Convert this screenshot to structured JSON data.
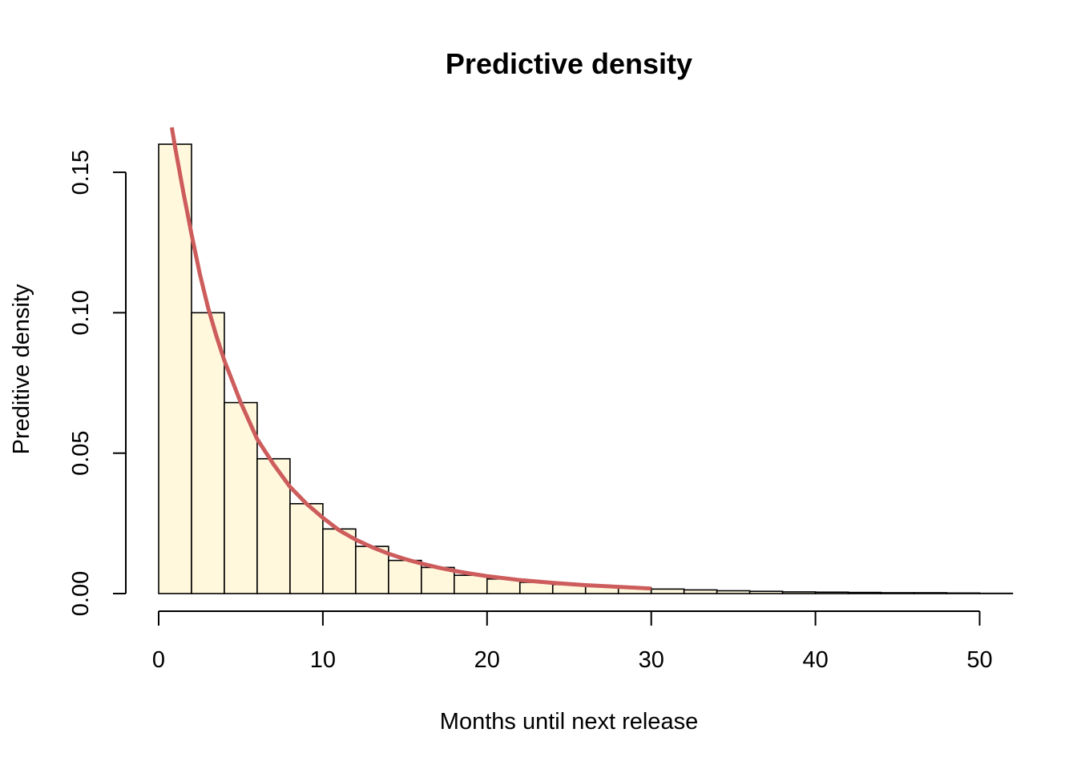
{
  "chart_data": {
    "type": "bar",
    "title": "Predictive density",
    "xlabel": "Months until next release",
    "ylabel": "Preditive density",
    "xlim": [
      0,
      52
    ],
    "ylim": [
      0,
      0.15
    ],
    "x_ticks": [
      0,
      10,
      20,
      30,
      40,
      50
    ],
    "x_tick_labels": [
      "0",
      "10",
      "20",
      "30",
      "40",
      "50"
    ],
    "y_ticks": [
      0,
      0.05,
      0.1,
      0.15
    ],
    "y_tick_labels": [
      "0.00",
      "0.05",
      "0.10",
      "0.15"
    ],
    "grid": false,
    "histogram": {
      "bin_width": 2,
      "bin_starts": [
        0,
        2,
        4,
        6,
        8,
        10,
        12,
        14,
        16,
        18,
        20,
        22,
        24,
        26,
        28,
        30,
        32,
        34,
        36,
        38,
        40,
        42,
        44,
        46,
        48,
        50
      ],
      "values": [
        0.16,
        0.1,
        0.068,
        0.048,
        0.032,
        0.023,
        0.0168,
        0.0118,
        0.0093,
        0.0065,
        0.0052,
        0.004,
        0.0032,
        0.0025,
        0.002,
        0.0016,
        0.0013,
        0.001,
        0.0008,
        0.0006,
        0.0005,
        0.0004,
        0.0003,
        0.0003,
        0.0002,
        0.0001
      ],
      "fill_color": "#FFF8DC",
      "stroke_color": "#000000"
    },
    "curve": {
      "x": [
        0.8,
        1,
        1.5,
        2,
        2.5,
        3,
        3.5,
        4,
        5,
        6,
        7,
        8,
        9,
        10,
        11,
        12,
        13,
        14,
        15,
        16,
        17,
        18,
        19,
        20,
        22,
        24,
        26,
        28,
        30
      ],
      "y": [
        0.166,
        0.159,
        0.143,
        0.128,
        0.114,
        0.102,
        0.092,
        0.083,
        0.068,
        0.055,
        0.046,
        0.038,
        0.032,
        0.027,
        0.0225,
        0.0192,
        0.0165,
        0.0142,
        0.0123,
        0.0107,
        0.0093,
        0.0081,
        0.0071,
        0.0062,
        0.0048,
        0.0038,
        0.003,
        0.0024,
        0.0018
      ],
      "color": "#CD5C5C"
    }
  }
}
